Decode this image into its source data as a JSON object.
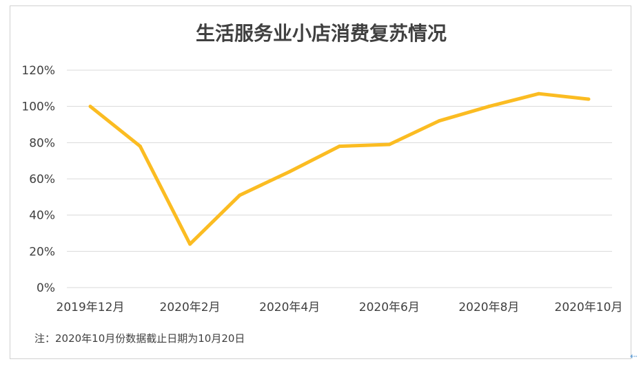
{
  "chart_data": {
    "type": "line",
    "title": "生活服务业小店消费复苏情况",
    "x_tick_labels": [
      "2019年12月",
      "2020年2月",
      "2020年4月",
      "2020年6月",
      "2020年8月",
      "2020年10月"
    ],
    "y_tick_labels": [
      "0%",
      "20%",
      "40%",
      "60%",
      "80%",
      "100%",
      "120%"
    ],
    "ylim": [
      0,
      120
    ],
    "grid": true,
    "series": [
      {
        "points": [
          [
            "2019-12-01",
            100
          ],
          [
            "2020-01-01",
            78
          ],
          [
            "2020-02-01",
            24
          ],
          [
            "2020-03-01",
            51
          ],
          [
            "2020-04-01",
            64
          ],
          [
            "2020-05-01",
            78
          ],
          [
            "2020-06-01",
            79
          ],
          [
            "2020-07-01",
            92
          ],
          [
            "2020-08-01",
            100
          ],
          [
            "2020-09-01",
            107
          ],
          [
            "2020-10-01",
            104
          ]
        ]
      }
    ],
    "line_color": "#FBBC22",
    "footnote": "注：2020年10月份数据截止日期为10月20日"
  }
}
